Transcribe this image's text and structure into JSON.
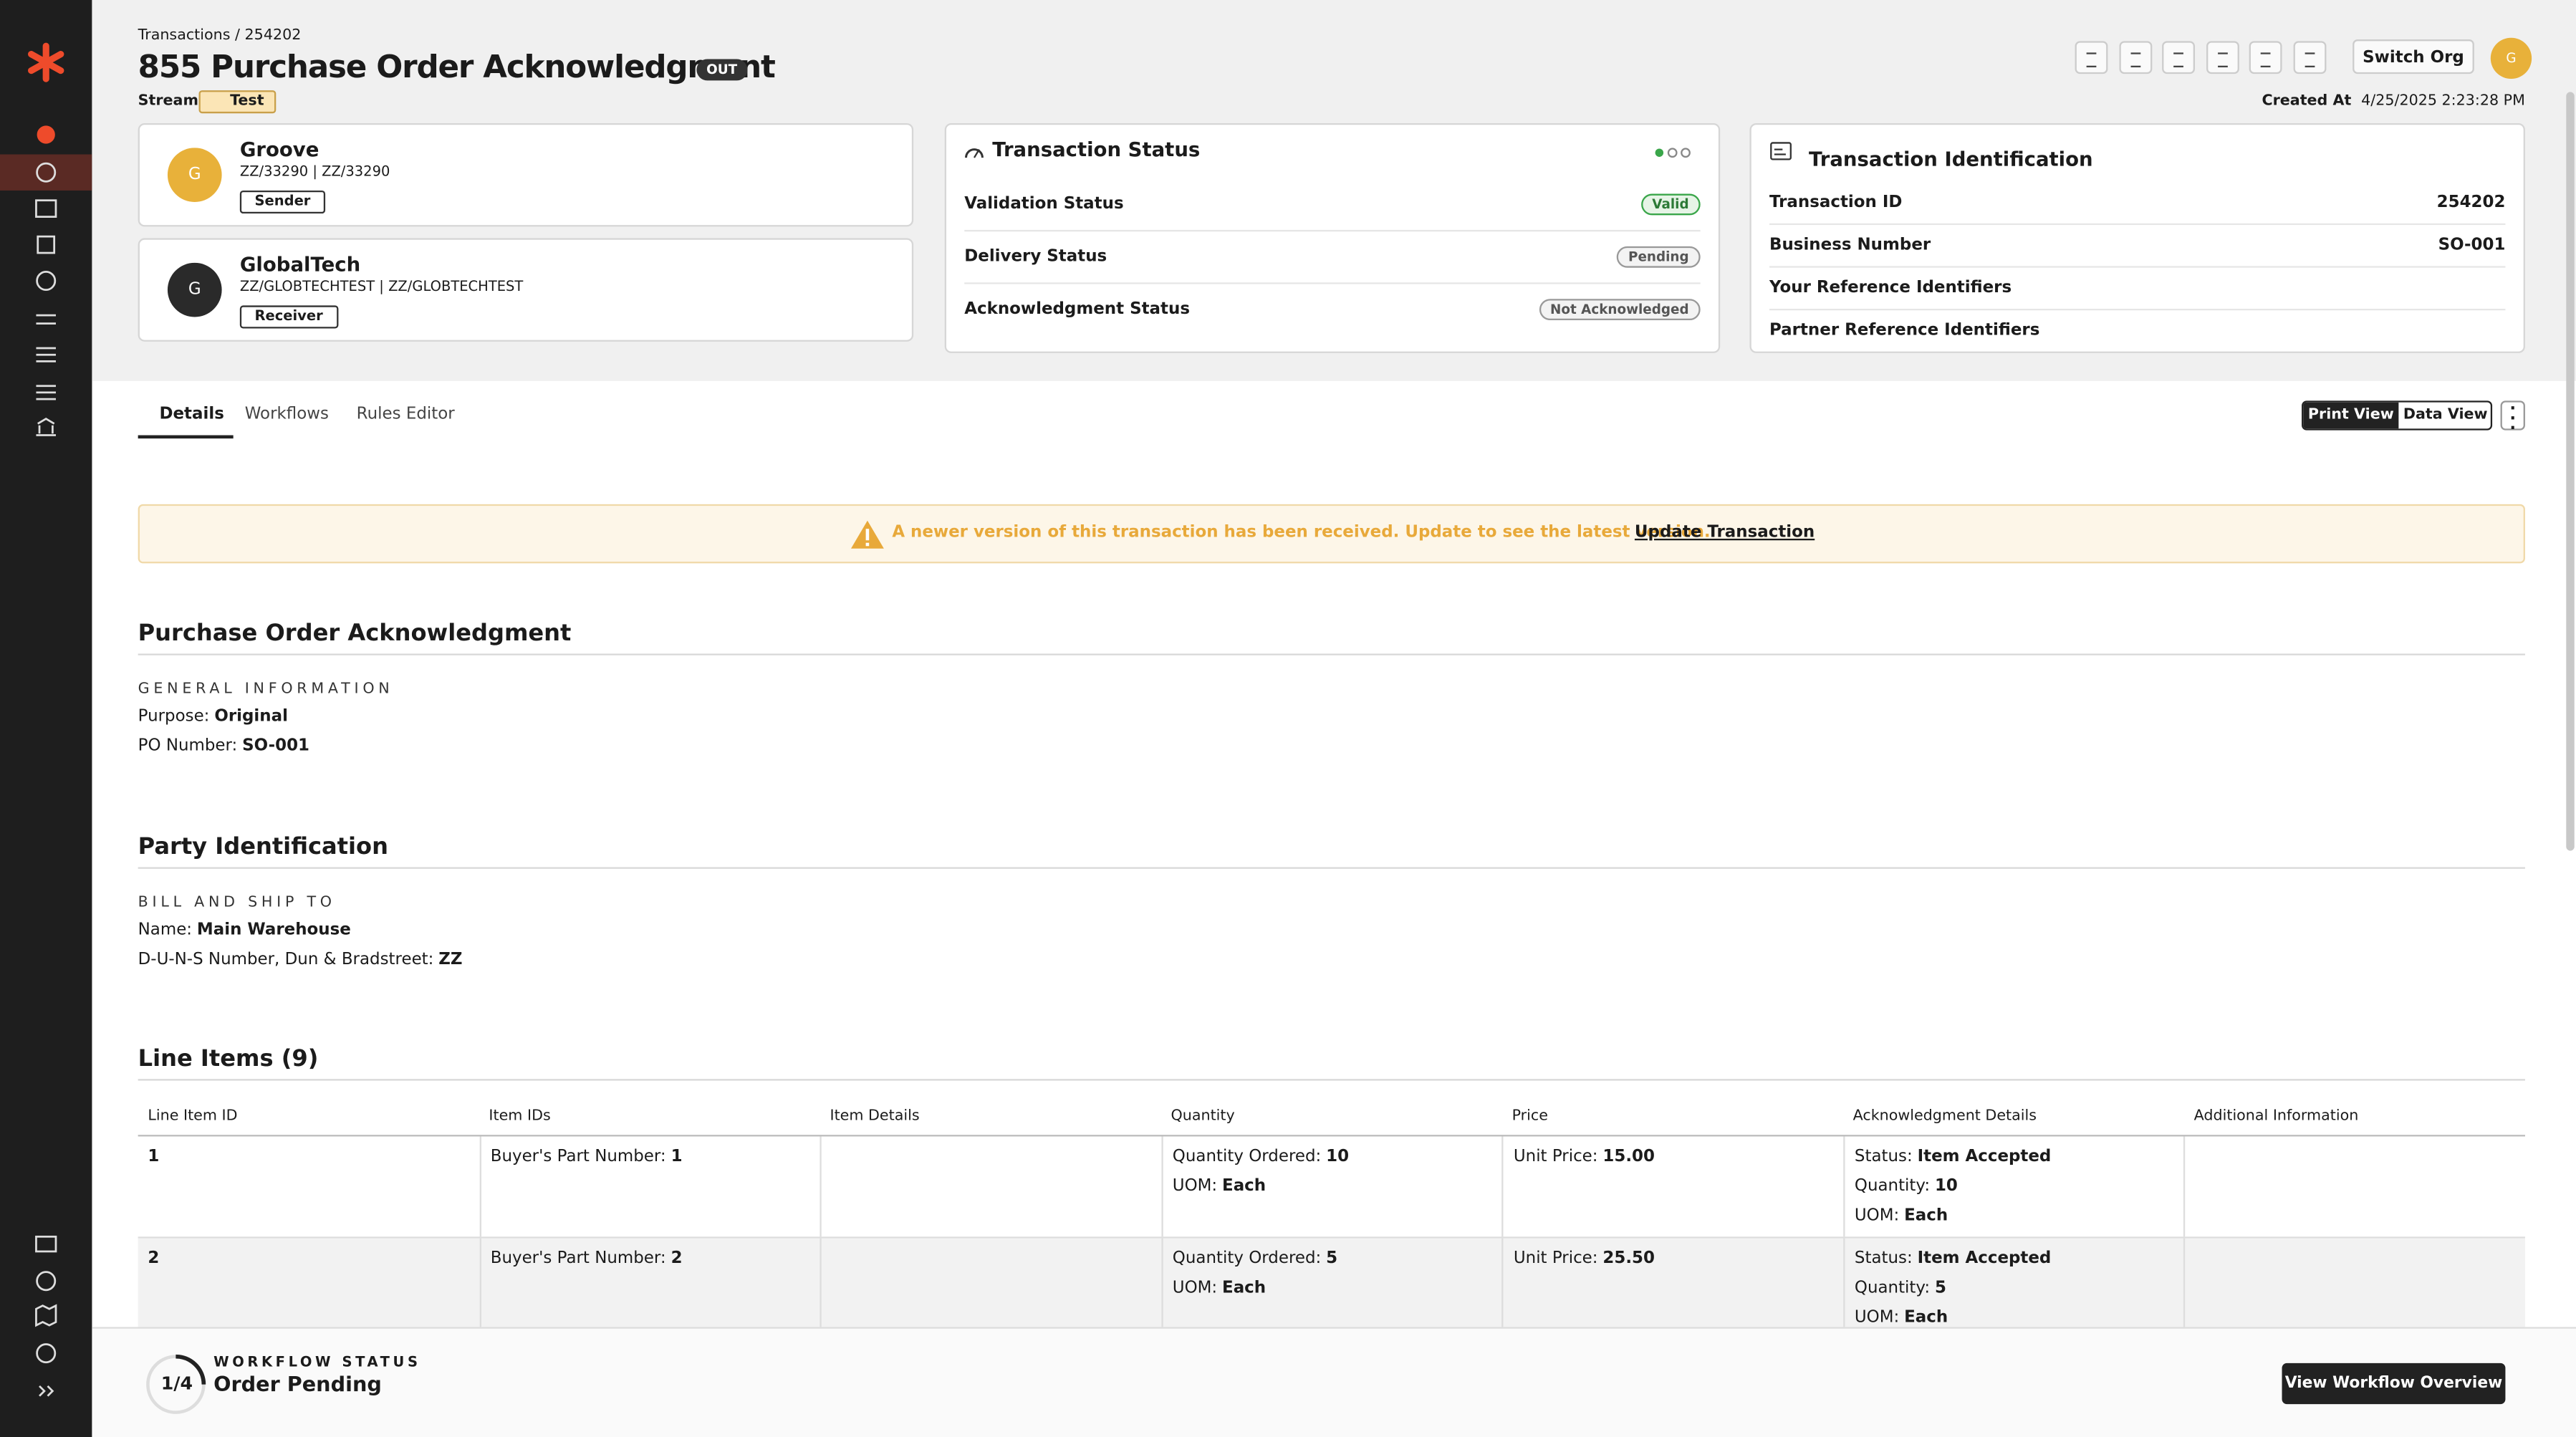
{
  "breadcrumb": "Transactions / 254202",
  "title": "855 Purchase Order Acknowledgment",
  "direction_badge": "OUT",
  "stream": {
    "label": "Stream",
    "tag": "Test"
  },
  "switch_org": "Switch Org",
  "user_avatar": "G",
  "created": {
    "label": "Created At",
    "value": "4/25/2025 2:23:28 PM"
  },
  "parties": [
    {
      "avatar": "G",
      "name": "Groove",
      "ids": "ZZ/33290 | ZZ/33290",
      "role": "Sender"
    },
    {
      "avatar": "G",
      "name": "GlobalTech",
      "ids": "ZZ/GLOBTECHTEST | ZZ/GLOBTECHTEST",
      "role": "Receiver"
    }
  ],
  "transaction_status": {
    "title": "Transaction Status",
    "rows": [
      {
        "label": "Validation Status",
        "value": "Valid"
      },
      {
        "label": "Delivery Status",
        "value": "Pending"
      },
      {
        "label": "Acknowledgment Status",
        "value": "Not Acknowledged"
      }
    ]
  },
  "transaction_identification": {
    "title": "Transaction Identification",
    "rows": [
      {
        "label": "Transaction ID",
        "value": "254202"
      },
      {
        "label": "Business Number",
        "value": "SO-001"
      },
      {
        "label": "Your Reference Identifiers"
      },
      {
        "label": "Partner Reference Identifiers"
      }
    ]
  },
  "tabs": [
    "Details",
    "Workflows",
    "Rules Editor"
  ],
  "view_toggle": [
    "Print View",
    "Data View"
  ],
  "alert": {
    "message": "A newer version of this transaction has been received. Update to see the latest version.",
    "action": "Update Transaction"
  },
  "sections": [
    {
      "title": "Purchase Order Acknowledgment",
      "heading": "GENERAL INFORMATION",
      "fields": [
        {
          "label": "Purpose:",
          "value": "Original"
        },
        {
          "label": "PO Number:",
          "value": "SO-001"
        }
      ]
    },
    {
      "title": "Party Identification",
      "heading": "BILL AND SHIP TO",
      "fields": [
        {
          "label": "Name:",
          "value": "Main Warehouse"
        },
        {
          "label": "D-U-N-S Number, Dun & Bradstreet:",
          "value": "ZZ"
        }
      ]
    }
  ],
  "line_items": {
    "title": "Line Items (9)",
    "columns": [
      "Line Item ID",
      "Item IDs",
      "Item Details",
      "Quantity",
      "Price",
      "Acknowledgment Details",
      "Additional Information"
    ],
    "rows": [
      {
        "id": "1",
        "cells": [
          [
            {
              "label": "Buyer's Part Number:",
              "value": "1"
            }
          ],
          [],
          [
            {
              "label": "Quantity Ordered:",
              "value": "10"
            },
            {
              "label": "UOM:",
              "value": "Each"
            }
          ],
          [
            {
              "label": "Unit Price:",
              "value": "15.00"
            }
          ],
          [
            {
              "label": "Status:",
              "value": "Item Accepted"
            },
            {
              "label": "Quantity:",
              "value": "10"
            },
            {
              "label": "UOM:",
              "value": "Each"
            }
          ],
          []
        ]
      },
      {
        "id": "2",
        "cells": [
          [
            {
              "label": "Buyer's Part Number:",
              "value": "2"
            }
          ],
          [],
          [
            {
              "label": "Quantity Ordered:",
              "value": "5"
            },
            {
              "label": "UOM:",
              "value": "Each"
            }
          ],
          [
            {
              "label": "Unit Price:",
              "value": "25.50"
            }
          ],
          [
            {
              "label": "Status:",
              "value": "Item Accepted"
            },
            {
              "label": "Quantity:",
              "value": "5"
            },
            {
              "label": "UOM:",
              "value": "Each"
            }
          ],
          []
        ]
      }
    ]
  },
  "workflow": {
    "progress": "1/4",
    "label": "WORKFLOW STATUS",
    "status": "Order Pending",
    "button": "View Workflow Overview"
  }
}
